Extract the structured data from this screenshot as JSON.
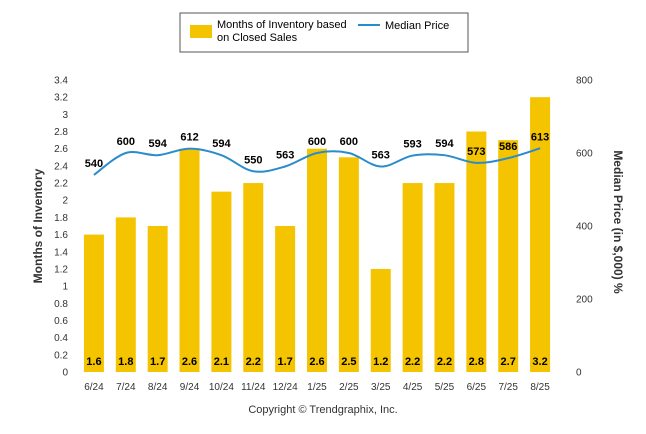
{
  "chart_data": {
    "type": "bar",
    "categories": [
      "6/24",
      "7/24",
      "8/24",
      "9/24",
      "10/24",
      "11/24",
      "12/24",
      "1/25",
      "2/25",
      "3/25",
      "4/25",
      "5/25",
      "6/25",
      "7/25",
      "8/25"
    ],
    "series": [
      {
        "name": "Months of Inventory based on Closed Sales",
        "type": "bar",
        "axis": "left",
        "color": "#f5c400",
        "values": [
          1.6,
          1.8,
          1.7,
          2.6,
          2.1,
          2.2,
          1.7,
          2.6,
          2.5,
          1.2,
          2.2,
          2.2,
          2.8,
          2.7,
          3.2
        ],
        "labels": [
          "1.6",
          "1.8",
          "1.7",
          "2.6",
          "2.1",
          "2.2",
          "1.7",
          "2.6",
          "2.5",
          "1.2",
          "2.2",
          "2.2",
          "2.8",
          "2.7",
          "3.2"
        ]
      },
      {
        "name": "Median Price",
        "type": "line",
        "axis": "right",
        "color": "#2a8ccc",
        "values": [
          540,
          600,
          594,
          612,
          594,
          550,
          563,
          600,
          600,
          563,
          593,
          594,
          573,
          586,
          613
        ],
        "labels": [
          "540",
          "600",
          "594",
          "612",
          "594",
          "550",
          "563",
          "600",
          "600",
          "563",
          "593",
          "594",
          "573",
          "586",
          "613"
        ]
      }
    ],
    "legend": {
      "position": "top-center",
      "bar_label_line1": "Months of Inventory based",
      "bar_label_line2": "on Closed Sales",
      "line_label": "Median Price"
    },
    "ylabel": "Months of Inventory",
    "y2label": "Median Price (in $,000) %",
    "ylim": [
      0,
      3.4
    ],
    "y2lim": [
      0,
      800
    ],
    "yticks": [
      "0",
      "0.2",
      "0.4",
      "0.6",
      "0.8",
      "1",
      "1.2",
      "1.4",
      "1.6",
      "1.8",
      "2",
      "2.2",
      "2.4",
      "2.6",
      "2.8",
      "3",
      "3.2",
      "3.4"
    ],
    "y2ticks": [
      "0",
      "200",
      "400",
      "600",
      "800"
    ],
    "grid": false
  },
  "footer": {
    "copyright": "Copyright © Trendgraphix, Inc."
  }
}
